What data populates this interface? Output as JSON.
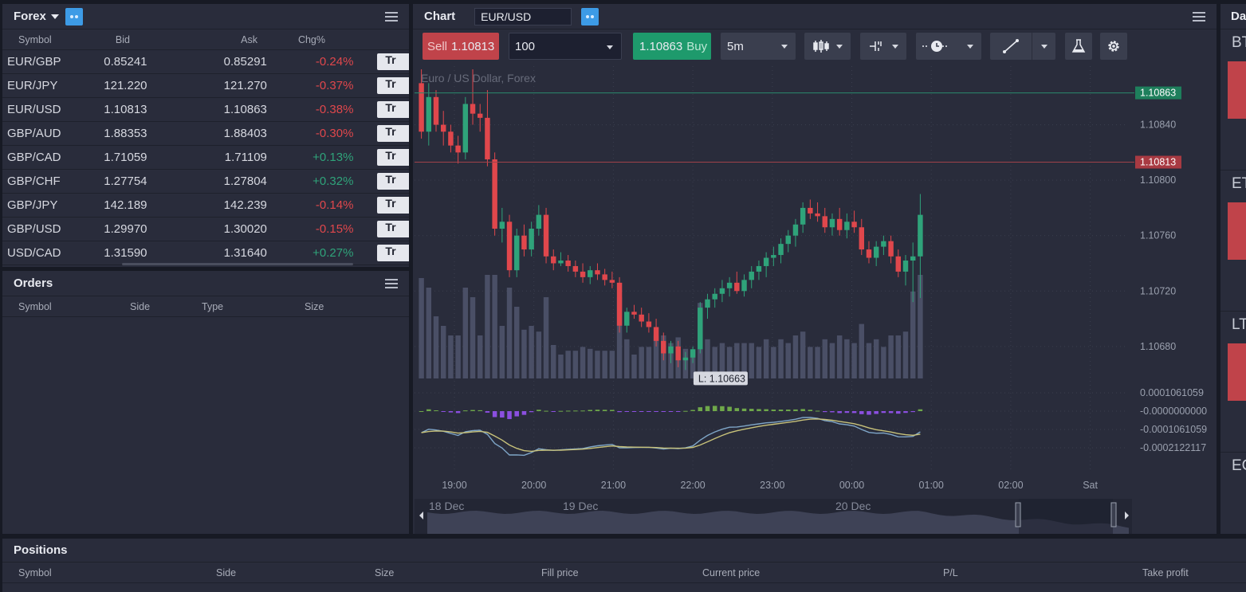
{
  "forex": {
    "title": "Forex",
    "columns": {
      "symbol": "Symbol",
      "bid": "Bid",
      "ask": "Ask",
      "chg": "Chg%"
    },
    "rows": [
      {
        "symbol": "EUR/GBP",
        "bid": "0.85241",
        "ask": "0.85291",
        "chg": "-0.24%",
        "dir": "neg",
        "btn": "Tr"
      },
      {
        "symbol": "EUR/JPY",
        "bid": "121.220",
        "ask": "121.270",
        "chg": "-0.37%",
        "dir": "neg",
        "btn": "Tr"
      },
      {
        "symbol": "EUR/USD",
        "bid": "1.10813",
        "ask": "1.10863",
        "chg": "-0.38%",
        "dir": "neg",
        "btn": "Tr"
      },
      {
        "symbol": "GBP/AUD",
        "bid": "1.88353",
        "ask": "1.88403",
        "chg": "-0.30%",
        "dir": "neg",
        "btn": "Tr"
      },
      {
        "symbol": "GBP/CAD",
        "bid": "1.71059",
        "ask": "1.71109",
        "chg": "+0.13%",
        "dir": "pos",
        "btn": "Tr"
      },
      {
        "symbol": "GBP/CHF",
        "bid": "1.27754",
        "ask": "1.27804",
        "chg": "+0.32%",
        "dir": "pos",
        "btn": "Tr"
      },
      {
        "symbol": "GBP/JPY",
        "bid": "142.189",
        "ask": "142.239",
        "chg": "-0.14%",
        "dir": "neg",
        "btn": "Tr"
      },
      {
        "symbol": "GBP/USD",
        "bid": "1.29970",
        "ask": "1.30020",
        "chg": "-0.15%",
        "dir": "neg",
        "btn": "Tr"
      },
      {
        "symbol": "USD/CAD",
        "bid": "1.31590",
        "ask": "1.31640",
        "chg": "+0.27%",
        "dir": "pos",
        "btn": "Tr"
      }
    ]
  },
  "orders": {
    "title": "Orders",
    "columns": {
      "symbol": "Symbol",
      "side": "Side",
      "type": "Type",
      "size": "Size"
    }
  },
  "chart": {
    "title": "Chart",
    "symbol": "EUR/USD",
    "sell_label": "Sell",
    "sell_price": "1.10813",
    "quantity": "100",
    "buy_price": "1.10863",
    "buy_label": "Buy",
    "timeframe": "5m",
    "legend": "Euro / US Dollar, Forex"
  },
  "right_panel": {
    "title": "Da",
    "items": [
      "BT",
      "ET",
      "LT",
      "EC"
    ]
  },
  "positions": {
    "title": "Positions",
    "columns": [
      "Symbol",
      "Side",
      "Size",
      "Fill price",
      "Current price",
      "P/L",
      "Take profit"
    ]
  },
  "colors": {
    "up": "#2fa37a",
    "down": "#e0474c",
    "accent": "#3d9be6",
    "panel": "#292c3b"
  },
  "chart_data": {
    "type": "candlestick",
    "price_axis_ticks": [
      "1.10840",
      "1.10800",
      "1.10760",
      "1.10720",
      "1.10680"
    ],
    "price_ylim": [
      1.1065,
      1.1088
    ],
    "ask_line": "1.10863",
    "bid_line": "1.10813",
    "low_label": "L: 1.10663",
    "macd_axis_ticks": [
      "0.0001061059",
      "-0.0000000000",
      "-0.0001061059",
      "-0.0002122117"
    ],
    "time_labels": [
      "19:00",
      "20:00",
      "21:00",
      "22:00",
      "23:00",
      "00:00",
      "01:00",
      "02:00",
      "Sat"
    ],
    "navigator_labels": [
      "18 Dec",
      "19 Dec",
      "20 Dec"
    ],
    "candles": [
      [
        1.1087,
        1.1088,
        1.1083,
        1.10835
      ],
      [
        1.10835,
        1.1087,
        1.10825,
        1.1086
      ],
      [
        1.1086,
        1.10865,
        1.10835,
        1.1084
      ],
      [
        1.1084,
        1.1085,
        1.10825,
        1.10835
      ],
      [
        1.10835,
        1.1084,
        1.1082,
        1.10825
      ],
      [
        1.10825,
        1.10832,
        1.10812,
        1.1082
      ],
      [
        1.1082,
        1.1086,
        1.10815,
        1.10855
      ],
      [
        1.10855,
        1.1088,
        1.1084,
        1.10848
      ],
      [
        1.10848,
        1.10855,
        1.10835,
        1.10845
      ],
      [
        1.10845,
        1.10865,
        1.1081,
        1.10815
      ],
      [
        1.10815,
        1.1082,
        1.1076,
        1.10765
      ],
      [
        1.10765,
        1.1078,
        1.10755,
        1.1077
      ],
      [
        1.1077,
        1.10775,
        1.1073,
        1.10735
      ],
      [
        1.10735,
        1.10765,
        1.1073,
        1.1076
      ],
      [
        1.1076,
        1.10768,
        1.10745,
        1.1075
      ],
      [
        1.1075,
        1.1077,
        1.10745,
        1.10765
      ],
      [
        1.10765,
        1.10782,
        1.1076,
        1.10775
      ],
      [
        1.10775,
        1.1078,
        1.1074,
        1.10745
      ],
      [
        1.10745,
        1.1075,
        1.10735,
        1.1074
      ],
      [
        1.1074,
        1.10748,
        1.10738,
        1.10742
      ],
      [
        1.10742,
        1.10746,
        1.10734,
        1.10738
      ],
      [
        1.10738,
        1.10742,
        1.1073,
        1.10734
      ],
      [
        1.10734,
        1.1074,
        1.10726,
        1.1073
      ],
      [
        1.1073,
        1.10738,
        1.10725,
        1.10735
      ],
      [
        1.10735,
        1.1074,
        1.10728,
        1.10732
      ],
      [
        1.10732,
        1.10736,
        1.10724,
        1.10728
      ],
      [
        1.10728,
        1.10734,
        1.10722,
        1.10726
      ],
      [
        1.10726,
        1.1073,
        1.1069,
        1.10695
      ],
      [
        1.10695,
        1.10708,
        1.1069,
        1.10705
      ],
      [
        1.10705,
        1.1071,
        1.107,
        1.10703
      ],
      [
        1.10703,
        1.10708,
        1.10694,
        1.10698
      ],
      [
        1.10698,
        1.10704,
        1.1069,
        1.10694
      ],
      [
        1.10694,
        1.107,
        1.1068,
        1.10684
      ],
      [
        1.10684,
        1.1069,
        1.1067,
        1.10675
      ],
      [
        1.10675,
        1.10684,
        1.10668,
        1.1068
      ],
      [
        1.1068,
        1.10684,
        1.10665,
        1.1067
      ],
      [
        1.1067,
        1.10676,
        1.10663,
        1.10672
      ],
      [
        1.10672,
        1.1068,
        1.10668,
        1.10678
      ],
      [
        1.10678,
        1.10712,
        1.10675,
        1.10708
      ],
      [
        1.10708,
        1.10718,
        1.107,
        1.10714
      ],
      [
        1.10714,
        1.10722,
        1.10708,
        1.10718
      ],
      [
        1.10718,
        1.10728,
        1.10712,
        1.10722
      ],
      [
        1.10722,
        1.1073,
        1.10716,
        1.10726
      ],
      [
        1.10726,
        1.10734,
        1.10718,
        1.1072
      ],
      [
        1.1072,
        1.10732,
        1.10716,
        1.10728
      ],
      [
        1.10728,
        1.10738,
        1.10722,
        1.10734
      ],
      [
        1.10734,
        1.10742,
        1.10728,
        1.10738
      ],
      [
        1.10738,
        1.10748,
        1.1073,
        1.10744
      ],
      [
        1.10744,
        1.10752,
        1.10738,
        1.10746
      ],
      [
        1.10746,
        1.10758,
        1.1074,
        1.10754
      ],
      [
        1.10754,
        1.10764,
        1.10748,
        1.1076
      ],
      [
        1.1076,
        1.10772,
        1.10752,
        1.10768
      ],
      [
        1.10768,
        1.10784,
        1.10762,
        1.1078
      ],
      [
        1.1078,
        1.10786,
        1.10772,
        1.10776
      ],
      [
        1.10776,
        1.10784,
        1.1077,
        1.10774
      ],
      [
        1.10774,
        1.1078,
        1.10762,
        1.10766
      ],
      [
        1.10766,
        1.10776,
        1.1076,
        1.10772
      ],
      [
        1.10772,
        1.1078,
        1.1076,
        1.10764
      ],
      [
        1.10764,
        1.10776,
        1.10758,
        1.1077
      ],
      [
        1.1077,
        1.10778,
        1.10762,
        1.10766
      ],
      [
        1.10766,
        1.10772,
        1.10746,
        1.1075
      ],
      [
        1.1075,
        1.10756,
        1.1074,
        1.10744
      ],
      [
        1.10744,
        1.10756,
        1.10738,
        1.10752
      ],
      [
        1.10752,
        1.1076,
        1.10746,
        1.10756
      ],
      [
        1.10756,
        1.1076,
        1.1074,
        1.10745
      ],
      [
        1.10745,
        1.1075,
        1.1073,
        1.10734
      ],
      [
        1.10734,
        1.10746,
        1.10724,
        1.10742
      ],
      [
        1.10742,
        1.10755,
        1.10712,
        1.10745
      ],
      [
        1.10745,
        1.1079,
        1.10715,
        1.10775
      ]
    ]
  }
}
